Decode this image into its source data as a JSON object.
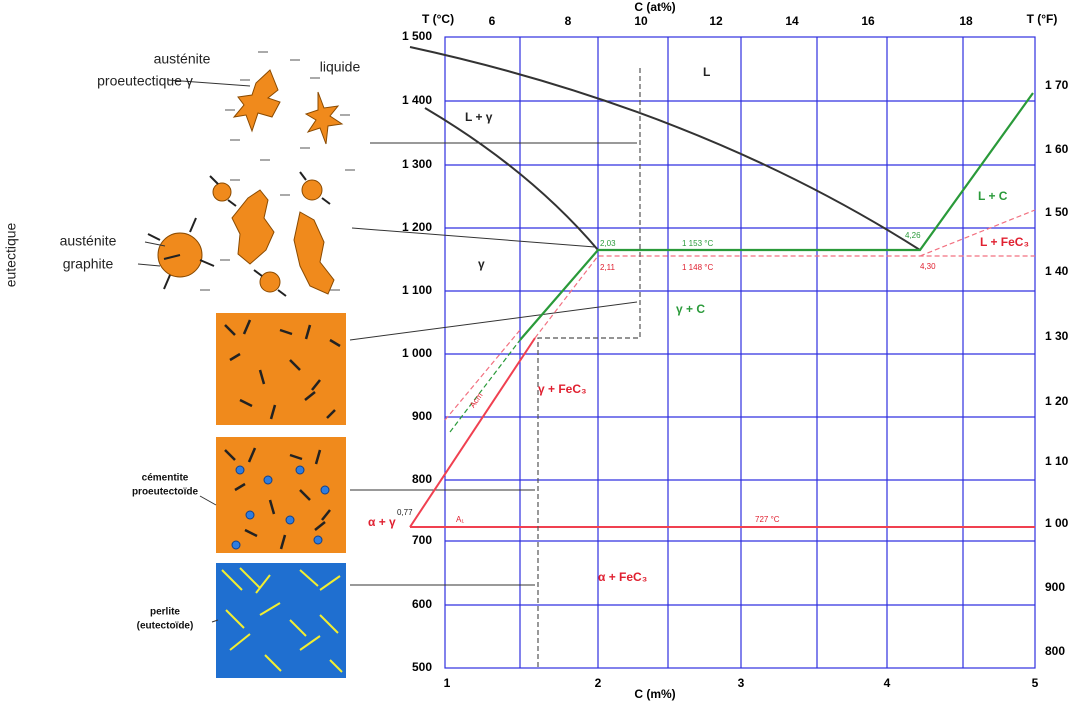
{
  "axes": {
    "left_title": "T (°C)",
    "right_title": "T (°F)",
    "top_title": "C (at%)",
    "bottom_title": "C (m%)",
    "left_ticks": [
      "1 500",
      "1 400",
      "1 300",
      "1 200",
      "1 100",
      "1 000",
      "900",
      "800",
      "700",
      "600",
      "500"
    ],
    "right_ticks": [
      "1 70",
      "1 60",
      "1 50",
      "1 40",
      "1 30",
      "1 20",
      "1 10",
      "1 00",
      "900",
      "800"
    ],
    "top_ticks": [
      "6",
      "8",
      "10",
      "12",
      "14",
      "16",
      "18"
    ],
    "bottom_ticks": [
      "1",
      "2",
      "3",
      "4",
      "5"
    ]
  },
  "regions": [
    "L",
    "L + γ",
    "γ",
    "γ + C",
    "L + C",
    "L + FeC₃",
    "γ + FeC₃",
    "α + γ",
    "α + FeC₃"
  ],
  "annotations": [
    "2,03",
    "2,11",
    "1 153 °C",
    "1 148 °C",
    "4,26",
    "4,30",
    "0,77",
    "A₁",
    "727 °C",
    "Acm"
  ],
  "micrographs": {
    "side_label": "eutectique",
    "labels": [
      "austénite",
      "proeutectique γ",
      "liquide",
      "austénite",
      "graphite",
      "cémentite",
      "proeutectoïde",
      "perlite",
      "(eutectoïde)"
    ]
  }
}
